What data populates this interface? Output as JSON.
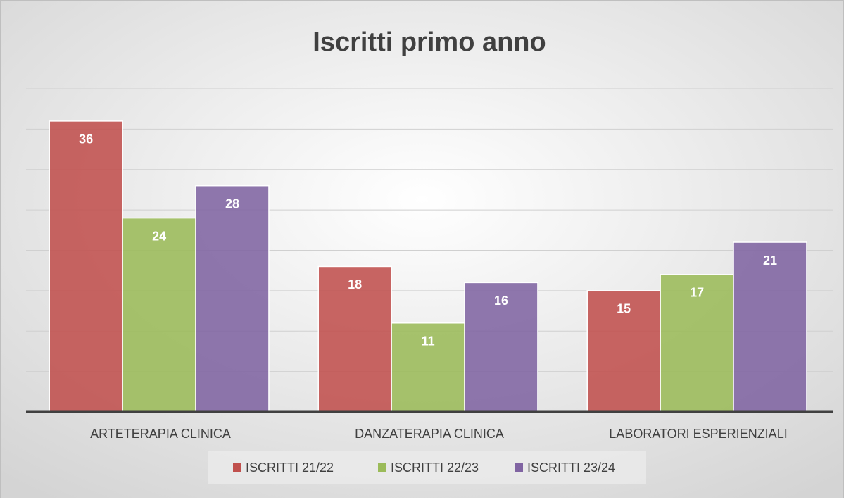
{
  "chart_data": {
    "type": "bar",
    "title": "Iscritti primo anno",
    "categories": [
      "ARTETERAPIA CLINICA",
      "DANZATERAPIA CLINICA",
      "LABORATORI ESPERIENZIALI"
    ],
    "series": [
      {
        "name": "ISCRITTI 21/22",
        "color": "#c0504d",
        "values": [
          36,
          18,
          15
        ]
      },
      {
        "name": "ISCRITTI 22/23",
        "color": "#9bbb59",
        "values": [
          24,
          11,
          17
        ]
      },
      {
        "name": "ISCRITTI 23/24",
        "color": "#8064a2",
        "values": [
          28,
          16,
          21
        ]
      }
    ],
    "ylim": [
      0,
      40
    ],
    "yticks": [
      0,
      5,
      10,
      15,
      20,
      25,
      30,
      35,
      40
    ],
    "grid": true,
    "show_ytick_labels": false,
    "legend": "bottom"
  }
}
